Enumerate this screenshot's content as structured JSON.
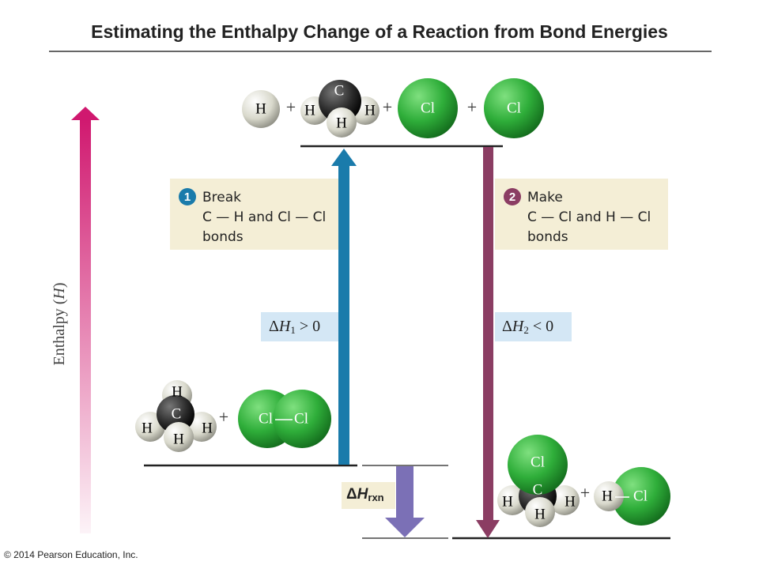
{
  "header": {
    "title": "Estimating the Enthalpy Change of a Reaction from Bond Energies"
  },
  "axis": {
    "label_parts": [
      "Enthalpy (",
      "H",
      ")"
    ]
  },
  "top_state": {
    "hydrogen": "H",
    "plus_1": "+",
    "methane_fragment": {
      "carbon": "C",
      "hydrogens": [
        "H",
        "H",
        "H"
      ]
    },
    "plus_2": "+",
    "chlorine_1": "Cl",
    "plus_3": "+",
    "chlorine_2": "Cl"
  },
  "reactants": {
    "methane": {
      "carbon": "C",
      "hydrogens": [
        "H",
        "H",
        "H",
        "H"
      ]
    },
    "plus": "+",
    "chlorine": [
      "Cl",
      "Cl"
    ]
  },
  "products": {
    "chloromethane": {
      "chlorine": "Cl",
      "carbon": "C",
      "hydrogens": [
        "H",
        "H",
        "H"
      ]
    },
    "plus": "+",
    "hydrogen_chloride": [
      "H",
      "Cl"
    ]
  },
  "steps": [
    {
      "number": "1",
      "lines": [
        "Break",
        "C — H and Cl — Cl",
        "bonds"
      ]
    },
    {
      "number": "2",
      "lines": [
        "Make",
        "C — Cl and H — Cl",
        "bonds"
      ]
    }
  ],
  "delta_h1": {
    "delta": "Δ",
    "symbol": "H",
    "subscript": "1",
    "relation": " > 0"
  },
  "delta_h2": {
    "delta": "Δ",
    "symbol": "H",
    "subscript": "2",
    "relation": " < 0"
  },
  "delta_h_rxn": {
    "delta": "Δ",
    "symbol": "H",
    "subscript": "rxn"
  },
  "footer": {
    "copyright": "© 2014 Pearson Education, Inc."
  }
}
